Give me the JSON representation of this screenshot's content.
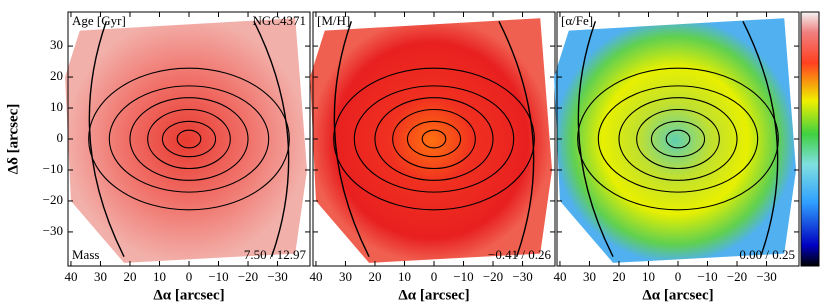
{
  "panels": [
    {
      "label": "Age [Gyr]",
      "galaxy": "NGC4371",
      "footer_left": "Mass",
      "range": "7.50 / 12.97"
    },
    {
      "label": "[M/H]",
      "range": "−0.41 / 0.26"
    },
    {
      "label": "[α/Fe]",
      "range": "0.00 / 0.25"
    }
  ],
  "axes": {
    "x_label": "Δα [arcsec]",
    "y_label": "Δδ [arcsec]",
    "xlim": [
      41,
      -41
    ],
    "ylim": [
      -41,
      41
    ],
    "xticks": [
      40,
      30,
      20,
      10,
      0,
      {
        "value": -10,
        "label": "−10"
      },
      {
        "value": -20,
        "label": "−20"
      },
      {
        "value": -30,
        "label": "−30"
      }
    ],
    "yticks": [
      30,
      20,
      10,
      0,
      {
        "value": -10,
        "label": "−10"
      },
      {
        "value": -20,
        "label": "−20"
      },
      {
        "value": -30,
        "label": "−30"
      }
    ]
  }
}
